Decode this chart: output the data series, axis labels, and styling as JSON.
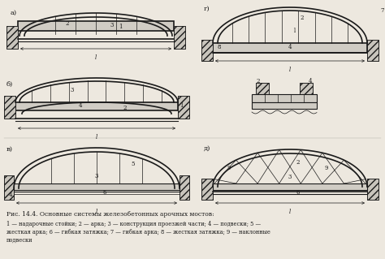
{
  "title": "Рис. 14.4. Основные системы железобетонных арочных мостов:",
  "cap2": "1 — надарочные стойки; 2 — арка; 3 — конструкция проезжей части; 4 — подвески; 5 —",
  "cap3": "жесткая арка; 6 — гибкая затяжка; 7 — гибкая арка; 8 — жесткая затяжка; 9 — наклонные",
  "cap4": "подвески",
  "bg": "#ede8df",
  "lc": "#1a1a1a",
  "fc_deck": "#d8d4cc",
  "fc_hatch": "#b0a898"
}
